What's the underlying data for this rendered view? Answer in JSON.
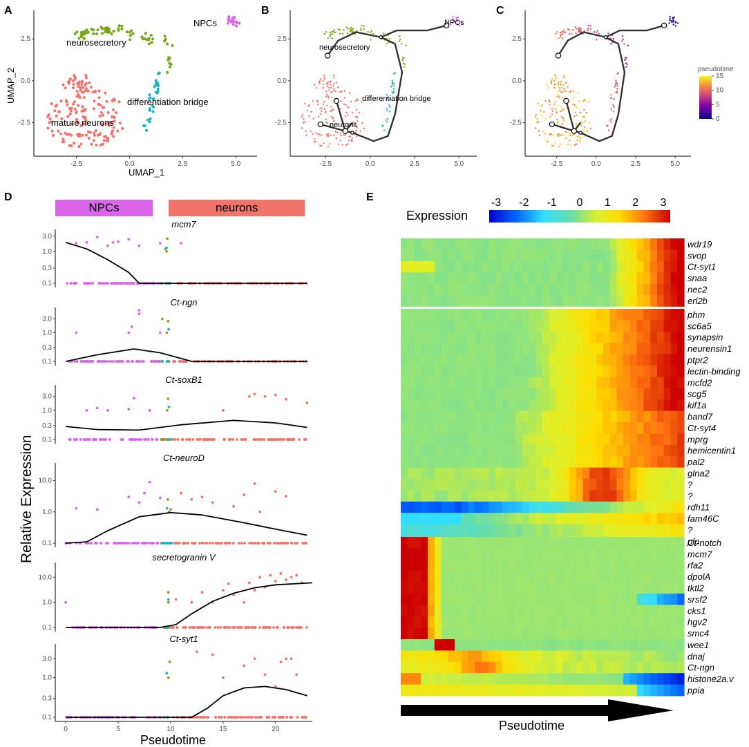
{
  "panel_labels": [
    "A",
    "B",
    "C",
    "D",
    "E"
  ],
  "colors": {
    "npc": "#d966e9",
    "neurons": "#f1746c",
    "neurosecretory": "#7aa51a",
    "bridge": "#1fb1c4",
    "olive": "#9a9a2a",
    "trajectory": "#333333"
  },
  "chart_data": [
    {
      "id": "A",
      "type": "scatter",
      "xlabel": "UMAP_1",
      "ylabel": "UMAP_2",
      "xticks": [
        "-2.5",
        "0.0",
        "2.5",
        "5.0"
      ],
      "yticks": [
        "2.5",
        "0.0",
        "-2.5"
      ],
      "xlim": [
        -4.5,
        6
      ],
      "ylim": [
        -4.5,
        4.2
      ],
      "clusters": [
        {
          "name": "NPCs",
          "label": "NPCs",
          "color": "#d966e9",
          "center": [
            4.9,
            3.6
          ],
          "spread": [
            0.5,
            0.35
          ],
          "n": 16
        },
        {
          "name": "neurosecretory",
          "label": "neurosecretory",
          "color": "#7aa51a",
          "center": [
            0.8,
            2.4
          ],
          "spread": [
            2.0,
            1.3
          ],
          "n": 70
        },
        {
          "name": "differentiation bridge",
          "label": "differentiation bridge",
          "color": "#1fb1c4",
          "center": [
            1.0,
            -1.8
          ],
          "spread": [
            0.6,
            1.6
          ],
          "n": 30
        },
        {
          "name": "mature neurons",
          "label": "mature neurons",
          "color": "#f1746c",
          "center": [
            -2.0,
            -2.0
          ],
          "spread": [
            1.9,
            2.1
          ],
          "n": 170
        }
      ]
    },
    {
      "id": "B",
      "type": "scatter",
      "xticks": [
        "-2.5",
        "0.0",
        "2.5",
        "5.0"
      ],
      "yticks": [
        "2.5",
        "0.0",
        "-2.5"
      ],
      "xlim": [
        -4.5,
        6
      ],
      "ylim": [
        -4.5,
        4.2
      ],
      "labels": [
        "NPCs",
        "neurosecretory",
        "differentiation bridge",
        "neurons"
      ],
      "trajectory": [
        [
          -2.4,
          1.5
        ],
        [
          -1.8,
          2.4
        ],
        [
          -0.8,
          2.9
        ],
        [
          0.6,
          2.6
        ],
        [
          1.5,
          3.0
        ],
        [
          3.2,
          3.0
        ],
        [
          4.3,
          3.3
        ]
      ],
      "trajectory2": [
        [
          0.6,
          2.6
        ],
        [
          1.4,
          2.2
        ],
        [
          1.8,
          0.5
        ],
        [
          1.4,
          -2.0
        ],
        [
          1.0,
          -3.3
        ],
        [
          0.2,
          -3.6
        ],
        [
          -1.0,
          -3.1
        ],
        [
          -1.4,
          -3.0
        ]
      ],
      "branches": [
        [
          [
            -1.4,
            -3.0
          ],
          [
            -2.8,
            -2.6
          ]
        ],
        [
          [
            -1.4,
            -3.0
          ],
          [
            -1.9,
            -1.2
          ]
        ],
        [
          [
            -1.4,
            -3.0
          ],
          [
            -1.0,
            -2.5
          ]
        ]
      ],
      "nodes": [
        [
          -2.4,
          1.5
        ],
        [
          4.3,
          3.3
        ],
        [
          -2.8,
          -2.6
        ],
        [
          -1.9,
          -1.2
        ],
        [
          -1.4,
          -3.0
        ],
        [
          0.6,
          2.6
        ],
        [
          -1.0,
          -3.1
        ]
      ]
    },
    {
      "id": "C",
      "type": "scatter",
      "xticks": [
        "-2.5",
        "0.0",
        "2.5",
        "5.0"
      ],
      "yticks": [
        "2.5",
        "0.0",
        "-2.5"
      ],
      "xlim": [
        -4.5,
        6
      ],
      "ylim": [
        -4.5,
        4.2
      ],
      "legend_title": "pseudotime",
      "legend_ticks": [
        "15",
        "10",
        "5",
        "0"
      ],
      "color_range": [
        0,
        15
      ]
    },
    {
      "id": "D",
      "type": "scatter",
      "xlabel": "Pseudotime",
      "ylabel": "Relative Expression",
      "xticks": [
        "0",
        "5",
        "10",
        "15",
        "20"
      ],
      "xlim": [
        -1,
        23.5
      ],
      "bars": [
        {
          "label": "NPCs",
          "color": "#d966e9",
          "from": -1.0,
          "to": 8.3
        },
        {
          "label": "neurons",
          "color": "#f1746c",
          "from": 9.8,
          "to": 22.8
        }
      ],
      "genes": [
        {
          "name": "mcm7",
          "yticks": [
            "3.0",
            "1.0",
            "0.3",
            "0.1"
          ],
          "ytickv": [
            3,
            1,
            0.3,
            0.1
          ],
          "ymax": 4,
          "curve": [
            [
              0,
              1.9
            ],
            [
              2,
              1.2
            ],
            [
              4,
              0.55
            ],
            [
              6,
              0.22
            ],
            [
              7,
              0.1
            ],
            [
              23,
              0.1
            ]
          ],
          "high": {
            "npc": [
              [
                1,
                1.8
              ],
              [
                2,
                1.9
              ],
              [
                3,
                2.8
              ],
              [
                4,
                1.5
              ],
              [
                4.5,
                1.9
              ],
              [
                5,
                2.0
              ],
              [
                6,
                2.4
              ],
              [
                7,
                1.5
              ],
              [
                9,
                1.8
              ],
              [
                9.5,
                1.2
              ],
              [
                11,
                1.8
              ]
            ],
            "neu": []
          }
        },
        {
          "name": "Ct-ngn",
          "yticks": [
            "3.0",
            "1.0",
            "0.3",
            "0.1"
          ],
          "ytickv": [
            3,
            1,
            0.3,
            0.1
          ],
          "ymax": 6,
          "curve": [
            [
              0,
              0.1
            ],
            [
              3,
              0.17
            ],
            [
              6.5,
              0.27
            ],
            [
              9,
              0.2
            ],
            [
              12,
              0.1
            ],
            [
              23,
              0.1
            ]
          ],
          "high": {
            "npc": [
              [
                1,
                1.0
              ],
              [
                6,
                1.0
              ],
              [
                6.3,
                1.6
              ],
              [
                7,
                4.5
              ],
              [
                7,
                6.0
              ],
              [
                9,
                1.0
              ],
              [
                9.2,
                3.0
              ]
            ],
            "neu": []
          }
        },
        {
          "name": "Ct-soxB1",
          "yticks": [
            "3.0",
            "1.0",
            "0.3",
            "0.1"
          ],
          "ytickv": [
            3,
            1,
            0.3,
            0.1
          ],
          "ymax": 6,
          "curve": [
            [
              0,
              0.28
            ],
            [
              3,
              0.22
            ],
            [
              7,
              0.21
            ],
            [
              11,
              0.32
            ],
            [
              16,
              0.45
            ],
            [
              20,
              0.37
            ],
            [
              23,
              0.26
            ]
          ],
          "high": {
            "npc": [
              [
                2,
                1.0
              ],
              [
                3,
                1.2
              ],
              [
                4,
                1.0
              ],
              [
                6,
                1.1
              ],
              [
                6.5,
                2.6
              ],
              [
                8,
                1.0
              ]
            ],
            "neu": [
              [
                15,
                1.0
              ],
              [
                17.5,
                3.0
              ],
              [
                18,
                3.6
              ],
              [
                19,
                3.0
              ],
              [
                20,
                3.4
              ],
              [
                21,
                2.4
              ],
              [
                23,
                1.8
              ]
            ]
          }
        },
        {
          "name": "Ct-neuroD",
          "yticks": [
            "10.0",
            "1.0",
            "0.1"
          ],
          "ytickv": [
            10,
            1,
            0.1
          ],
          "ymax": 30,
          "curve": [
            [
              0,
              0.1
            ],
            [
              2,
              0.11
            ],
            [
              4,
              0.25
            ],
            [
              7,
              0.7
            ],
            [
              10,
              0.95
            ],
            [
              13,
              0.8
            ],
            [
              17,
              0.45
            ],
            [
              20,
              0.28
            ],
            [
              23,
              0.18
            ]
          ],
          "high": {
            "npc": [
              [
                1,
                1.3
              ],
              [
                3,
                1.2
              ],
              [
                6,
                3.0
              ],
              [
                7,
                2.0
              ],
              [
                7.5,
                4.0
              ],
              [
                8,
                9.0
              ],
              [
                9,
                2.8
              ]
            ],
            "neu": [
              [
                10,
                1.2
              ],
              [
                11,
                4.0
              ],
              [
                12,
                2.5
              ],
              [
                13,
                3.0
              ],
              [
                14,
                2.0
              ],
              [
                16,
                1.5
              ],
              [
                17,
                3.5
              ],
              [
                18,
                8.0
              ],
              [
                18.5,
                1.0
              ],
              [
                20,
                4.5
              ],
              [
                21,
                3.2
              ]
            ]
          }
        },
        {
          "name": "secretogranin V",
          "yticks": [
            "10.0",
            "1.0",
            "0.1"
          ],
          "ytickv": [
            10,
            1,
            0.1
          ],
          "ymax": 30,
          "curve": [
            [
              0,
              0.1
            ],
            [
              9,
              0.1
            ],
            [
              10.5,
              0.13
            ],
            [
              12,
              0.35
            ],
            [
              14,
              1.1
            ],
            [
              16,
              2.3
            ],
            [
              18,
              3.8
            ],
            [
              20,
              5.0
            ],
            [
              23.5,
              6.0
            ]
          ],
          "high": {
            "npc": [
              [
                0,
                1.0
              ]
            ],
            "neu": [
              [
                10.5,
                1.3
              ],
              [
                12,
                1.0
              ],
              [
                13,
                2.5
              ],
              [
                14,
                1.0
              ],
              [
                15,
                3.0
              ],
              [
                15.5,
                5.5
              ],
              [
                16,
                2.0
              ],
              [
                17,
                1.0
              ],
              [
                17.5,
                6.0
              ],
              [
                18,
                3.0
              ],
              [
                18.5,
                10.0
              ],
              [
                19,
                4.0
              ],
              [
                19.5,
                12.0
              ],
              [
                20,
                7.0
              ],
              [
                20.5,
                14.0
              ],
              [
                21,
                8.0
              ],
              [
                21.5,
                10.0
              ],
              [
                22,
                12.0
              ],
              [
                22.5,
                6.0
              ]
            ]
          }
        },
        {
          "name": "Ct-syt1",
          "yticks": [
            "3.0",
            "1.0",
            "0.3",
            "0.1"
          ],
          "ytickv": [
            3,
            1,
            0.3,
            0.1
          ],
          "ymax": 6,
          "curve": [
            [
              0,
              0.1
            ],
            [
              12,
              0.1
            ],
            [
              13.5,
              0.17
            ],
            [
              15,
              0.35
            ],
            [
              17,
              0.55
            ],
            [
              19,
              0.6
            ],
            [
              21,
              0.5
            ],
            [
              23,
              0.35
            ]
          ],
          "high": {
            "npc": [],
            "neu": [
              [
                12.5,
                4.5
              ],
              [
                14,
                3.8
              ],
              [
                15,
                1.0
              ],
              [
                17,
                2.0
              ],
              [
                18,
                3.0
              ],
              [
                19,
                1.2
              ],
              [
                20,
                0.6
              ],
              [
                20.5,
                2.5
              ],
              [
                21,
                3.0
              ],
              [
                21.5,
                3.0
              ],
              [
                22,
                1.2
              ]
            ]
          }
        }
      ]
    },
    {
      "id": "E",
      "type": "heatmap",
      "title": "Expression",
      "xlabel": "Pseudotime",
      "colorbar_ticks": [
        "-3",
        "-2",
        "-1",
        "0",
        "1",
        "2",
        "3"
      ],
      "blocks": [
        {
          "genes": [
            "wdr19",
            "svop",
            "Ct-syt1",
            "snaa",
            "nec2",
            "erl2b"
          ],
          "kind": "late"
        },
        {
          "genes": [
            "phm",
            "sc6a5",
            "synapsin",
            "neurensin1",
            "ptpr2",
            "lectin-binding",
            "mcfd2",
            "scg5",
            "kif1a",
            "band7",
            "Ct-syt4",
            "mprg",
            "hemicentin1",
            "pal2",
            "glna2",
            "?",
            "?",
            "rdh11",
            "fam46C",
            "?",
            "plp"
          ],
          "kind": "mid-late"
        },
        {
          "genes": [
            "Ct-notch",
            "mcm7",
            "rfa2",
            "dpolA",
            "tktl2",
            "srsf2",
            "cks1",
            "hgv2",
            "smc4"
          ],
          "kind": "early"
        },
        {
          "genes": [
            "wee1",
            "dnaj",
            "Ct-ngn",
            "histone2a.v",
            "ppia"
          ],
          "kind": "transient"
        }
      ]
    }
  ]
}
